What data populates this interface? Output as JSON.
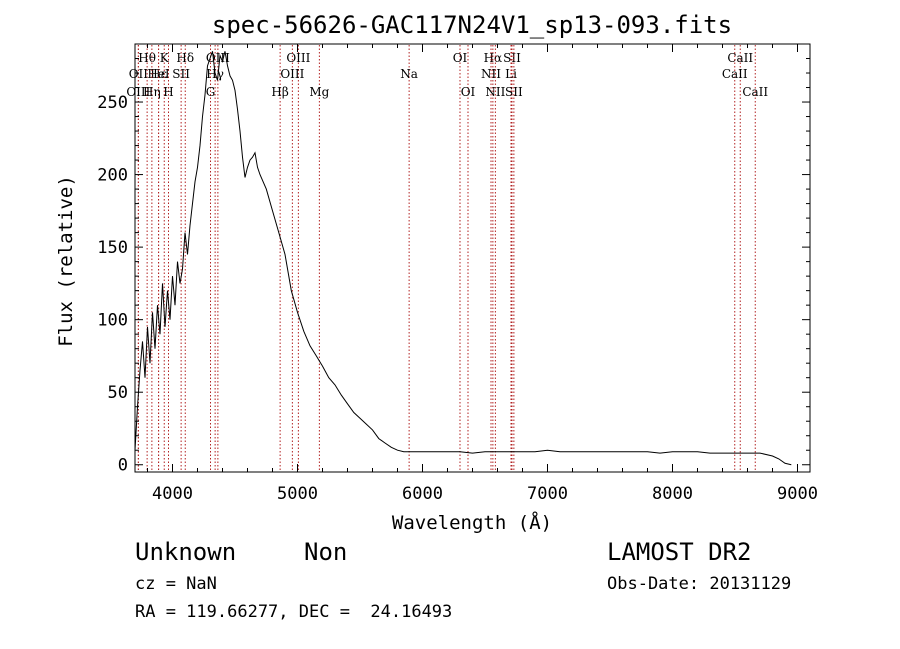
{
  "chart_data": {
    "type": "line",
    "title": "spec-56626-GAC117N24V1_sp13-093.fits",
    "xlabel": "Wavelength (Å)",
    "ylabel": "Flux (relative)",
    "xlim": [
      3700,
      9100
    ],
    "ylim": [
      -5,
      290
    ],
    "x_ticks": [
      4000,
      5000,
      6000,
      7000,
      8000,
      9000
    ],
    "y_ticks": [
      0,
      50,
      100,
      150,
      200,
      250
    ],
    "grid": false,
    "line_color": "#000000",
    "marker_color": "#b22222",
    "spectrum": {
      "x": [
        3700,
        3720,
        3740,
        3760,
        3780,
        3800,
        3820,
        3840,
        3860,
        3880,
        3900,
        3920,
        3940,
        3960,
        3980,
        4000,
        4020,
        4040,
        4060,
        4080,
        4100,
        4120,
        4140,
        4160,
        4180,
        4200,
        4220,
        4240,
        4260,
        4280,
        4300,
        4320,
        4340,
        4360,
        4380,
        4400,
        4420,
        4440,
        4460,
        4480,
        4500,
        4520,
        4540,
        4560,
        4580,
        4600,
        4620,
        4640,
        4660,
        4680,
        4700,
        4750,
        4800,
        4850,
        4900,
        4950,
        5000,
        5050,
        5100,
        5150,
        5200,
        5250,
        5300,
        5350,
        5400,
        5450,
        5500,
        5550,
        5600,
        5650,
        5700,
        5750,
        5800,
        5850,
        5900,
        5950,
        6000,
        6100,
        6200,
        6300,
        6400,
        6500,
        6600,
        6700,
        6800,
        6900,
        7000,
        7100,
        7200,
        7300,
        7400,
        7500,
        7600,
        7700,
        7800,
        7900,
        8000,
        8100,
        8200,
        8300,
        8400,
        8500,
        8600,
        8700,
        8800,
        8850,
        8900,
        8950
      ],
      "y": [
        10,
        40,
        65,
        85,
        60,
        95,
        70,
        105,
        80,
        110,
        90,
        125,
        95,
        120,
        100,
        130,
        110,
        140,
        125,
        135,
        160,
        145,
        165,
        180,
        195,
        205,
        220,
        240,
        255,
        275,
        280,
        285,
        270,
        265,
        282,
        278,
        285,
        275,
        268,
        265,
        258,
        245,
        230,
        212,
        198,
        205,
        210,
        212,
        215,
        205,
        200,
        190,
        175,
        160,
        145,
        120,
        105,
        92,
        82,
        75,
        68,
        60,
        55,
        48,
        42,
        36,
        32,
        28,
        24,
        18,
        15,
        12,
        10,
        9,
        9,
        9,
        9,
        9,
        9,
        9,
        8,
        9,
        9,
        9,
        9,
        9,
        10,
        9,
        9,
        9,
        9,
        9,
        9,
        9,
        9,
        8,
        9,
        9,
        9,
        8,
        8,
        8,
        8,
        8,
        6,
        4,
        1,
        0
      ]
    },
    "line_markers": [
      {
        "name": "Hθ",
        "x": 3797,
        "row": 1
      },
      {
        "name": "OII",
        "x": 3727,
        "row": 2
      },
      {
        "name": "OIII",
        "x": 3727,
        "row": 3
      },
      {
        "name": "Hε",
        "x": 3889,
        "row": 2
      },
      {
        "name": "K",
        "x": 3934,
        "row": 1
      },
      {
        "name": "HeI",
        "x": 3888,
        "row": 2
      },
      {
        "name": "Hη",
        "x": 3835,
        "row": 3
      },
      {
        "name": "H",
        "x": 3968,
        "row": 3
      },
      {
        "name": "SII",
        "x": 4069,
        "row": 2
      },
      {
        "name": "Hδ",
        "x": 4102,
        "row": 1
      },
      {
        "name": "OIII",
        "x": 4363,
        "row": 1
      },
      {
        "name": "Hγ",
        "x": 4341,
        "row": 2
      },
      {
        "name": "G",
        "x": 4304,
        "row": 3
      },
      {
        "name": "Hβ",
        "x": 4861,
        "row": 3
      },
      {
        "name": "OIII",
        "x": 5007,
        "row": 1
      },
      {
        "name": "OIII",
        "x": 4959,
        "row": 2
      },
      {
        "name": "Mg",
        "x": 5175,
        "row": 3
      },
      {
        "name": "Na",
        "x": 5893,
        "row": 2
      },
      {
        "name": "OI",
        "x": 6300,
        "row": 1
      },
      {
        "name": "OI",
        "x": 6364,
        "row": 3
      },
      {
        "name": "Hα",
        "x": 6563,
        "row": 1
      },
      {
        "name": "NII",
        "x": 6548,
        "row": 2
      },
      {
        "name": "NII",
        "x": 6583,
        "row": 3
      },
      {
        "name": "SII",
        "x": 6716,
        "row": 1
      },
      {
        "name": "Li",
        "x": 6708,
        "row": 2
      },
      {
        "name": "SII",
        "x": 6731,
        "row": 3
      },
      {
        "name": "CaII",
        "x": 8542,
        "row": 1
      },
      {
        "name": "CaII",
        "x": 8498,
        "row": 2
      },
      {
        "name": "CaII",
        "x": 8662,
        "row": 3
      }
    ]
  },
  "info": {
    "class": "Unknown",
    "subclass": "Non",
    "cz": "cz = NaN",
    "coords": "RA = 119.66277, DEC =  24.16493",
    "survey": "LAMOST DR2",
    "obs_date": "Obs-Date: 20131129"
  }
}
